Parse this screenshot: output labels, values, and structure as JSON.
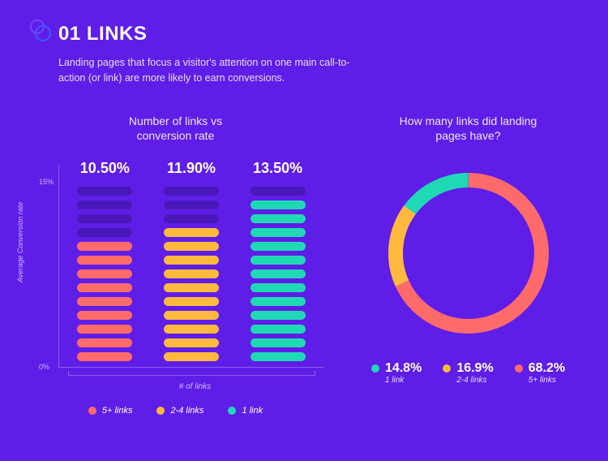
{
  "colors": {
    "background": "#5f1de8",
    "text": "#ffffff",
    "subtext": "#e6ddfb",
    "axis": "#8a5ff0",
    "muted_seg": "#4a17b8",
    "circle_purple": "#7b3ff2",
    "circle_blue": "#3a5cff"
  },
  "header": {
    "title": "01 LINKS",
    "subtitle": "Landing pages that focus a visitor's attention on one main call-to-action (or link) are more likely to earn conversions."
  },
  "bar_chart": {
    "title_line1": "Number of links vs",
    "title_line2": "conversion rate",
    "y_label": "Average Conversion rate",
    "x_label": "# of links",
    "y_ticks": [
      "0%",
      "15%"
    ],
    "max_segments": 13,
    "columns": [
      {
        "value": "10.50%",
        "filled": 9,
        "color": "#ff6b6b"
      },
      {
        "value": "11.90%",
        "filled": 10,
        "color": "#ffb93e"
      },
      {
        "value": "13.50%",
        "filled": 12,
        "color": "#1fd9b5"
      }
    ],
    "legend": [
      {
        "label": "5+ links",
        "color": "#ff6b6b"
      },
      {
        "label": "2-4 links",
        "color": "#ffb93e"
      },
      {
        "label": "1 link",
        "color": "#1fd9b5"
      }
    ]
  },
  "donut_chart": {
    "title_line1": "How many links did landing",
    "title_line2": "pages have?",
    "stroke_width": 18,
    "radius": 90,
    "slices": [
      {
        "pct": 68.2,
        "color": "#ff6b6b"
      },
      {
        "pct": 16.9,
        "color": "#ffb93e"
      },
      {
        "pct": 14.8,
        "color": "#1fd9b5"
      }
    ],
    "legend": [
      {
        "pct": "14.8%",
        "label": "1 link",
        "color": "#1fd9b5"
      },
      {
        "pct": "16.9%",
        "label": "2-4 links",
        "color": "#ffb93e"
      },
      {
        "pct": "68.2%",
        "label": "5+ links",
        "color": "#ff6b6b"
      }
    ]
  }
}
